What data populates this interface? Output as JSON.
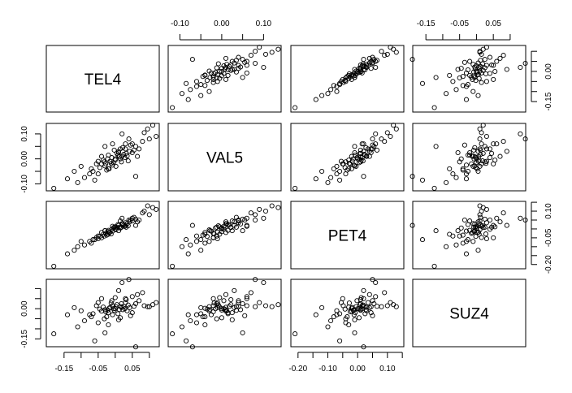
{
  "chart_data": {
    "type": "scatter",
    "kind": "scatterplot-matrix",
    "grid": false,
    "point_style": "open-circle",
    "colors": {
      "points": "#000000",
      "frame": "#000000",
      "background": "#ffffff"
    },
    "variables": [
      {
        "name": "TEL4",
        "lim": [
          -0.202,
          0.129
        ],
        "ticks": [
          -0.15,
          -0.1,
          -0.05,
          0.0,
          0.05,
          0.1
        ],
        "tick_labels_bottom": [
          "-0.15",
          "-0.05",
          "0.05"
        ],
        "tick_values_bottom": [
          -0.15,
          -0.05,
          0.05
        ],
        "tick_labels_right": [
          "0.00",
          "-0.15"
        ],
        "tick_values_right": [
          0.0,
          -0.15
        ]
      },
      {
        "name": "VAL5",
        "lim": [
          -0.128,
          0.142
        ],
        "ticks": [
          -0.1,
          -0.05,
          0.0,
          0.05,
          0.1
        ],
        "tick_labels_top": [
          "-0.10",
          "0.00",
          "0.10"
        ],
        "tick_values_top": [
          -0.1,
          0.0,
          0.1
        ],
        "tick_labels_left": [
          "-0.10",
          "0.00",
          "0.10"
        ],
        "tick_values_left": [
          -0.1,
          0.0,
          0.1
        ]
      },
      {
        "name": "PET4",
        "lim": [
          -0.224,
          0.155
        ],
        "ticks": [
          -0.2,
          -0.15,
          -0.1,
          -0.05,
          0.0,
          0.05,
          0.1,
          0.15
        ],
        "tick_labels_bottom": [
          "-0.20",
          "-0.10",
          "0.00",
          "0.10"
        ],
        "tick_values_bottom": [
          -0.2,
          -0.1,
          0.0,
          0.1
        ],
        "tick_labels_right": [
          "-0.20",
          "-0.05",
          "0.10"
        ],
        "tick_values_right": [
          -0.2,
          -0.05,
          0.1
        ]
      },
      {
        "name": "SUZ4",
        "lim": [
          -0.189,
          0.146
        ],
        "ticks": [
          -0.15,
          -0.1,
          -0.05,
          0.0,
          0.05,
          0.1
        ],
        "tick_labels_top": [
          "-0.15",
          "-0.05",
          "0.05"
        ],
        "tick_values_top": [
          -0.15,
          -0.05,
          0.05
        ],
        "tick_labels_left": [
          "-0.15",
          "0.00"
        ],
        "tick_values_left": [
          -0.15,
          0.0
        ]
      }
    ],
    "observations": [
      [
        -0.18,
        -0.118,
        -0.21,
        -0.125
      ],
      [
        0.11,
        0.135,
        0.12,
        0.02
      ],
      [
        0.095,
        0.12,
        0.13,
        0.01
      ],
      [
        0.085,
        0.105,
        0.1,
        0.015
      ],
      [
        -0.14,
        -0.08,
        -0.14,
        -0.03
      ],
      [
        -0.11,
        -0.095,
        -0.1,
        -0.09
      ],
      [
        -0.12,
        -0.05,
        -0.12,
        0.005
      ],
      [
        -0.09,
        -0.075,
        -0.09,
        -0.06
      ],
      [
        -0.06,
        -0.085,
        -0.06,
        -0.16
      ],
      [
        0.02,
        0.1,
        0.06,
        0.13
      ],
      [
        0.04,
        0.08,
        0.05,
        0.145
      ],
      [
        0.1,
        0.08,
        0.08,
        0.01
      ],
      [
        0.06,
        -0.07,
        0.02,
        -0.19
      ],
      [
        -0.03,
        0.05,
        -0.01,
        -0.12
      ],
      [
        0.01,
        0.03,
        0.02,
        0.09
      ],
      [
        -0.07,
        -0.04,
        -0.08,
        -0.04
      ],
      [
        -0.05,
        -0.06,
        -0.04,
        -0.07
      ],
      [
        0.05,
        0.06,
        0.06,
        0.06
      ],
      [
        0.07,
        0.04,
        0.05,
        0.04
      ],
      [
        0.08,
        0.07,
        0.09,
        0.08
      ],
      [
        -0.1,
        -0.03,
        -0.07,
        -0.01
      ],
      [
        0.03,
        0.06,
        0.02,
        0.05
      ],
      [
        -0.02,
        -0.04,
        -0.03,
        -0.08
      ],
      [
        0.12,
        0.09,
        0.11,
        0.03
      ],
      [
        -0.04,
        -0.02,
        -0.05,
        0.05
      ],
      [
        0.0,
        0.0,
        0.0,
        0.0
      ],
      [
        0.012,
        0.008,
        0.01,
        -0.004
      ],
      [
        -0.015,
        -0.01,
        -0.018,
        0.006
      ],
      [
        0.025,
        0.018,
        0.022,
        0.012
      ],
      [
        -0.028,
        -0.02,
        -0.025,
        -0.015
      ],
      [
        0.005,
        0.022,
        0.008,
        0.02
      ],
      [
        -0.008,
        -0.025,
        -0.012,
        -0.03
      ],
      [
        0.035,
        0.012,
        0.03,
        -0.01
      ],
      [
        -0.035,
        -0.005,
        -0.03,
        0.008
      ],
      [
        0.018,
        -0.012,
        0.01,
        0.025
      ],
      [
        -0.02,
        0.015,
        -0.008,
        -0.02
      ],
      [
        0.042,
        0.03,
        0.04,
        0.005
      ],
      [
        -0.045,
        -0.035,
        -0.042,
        -0.002
      ],
      [
        0.002,
        -0.03,
        -0.005,
        0.01
      ],
      [
        -0.003,
        0.035,
        0.01,
        -0.008
      ],
      [
        0.03,
        0.04,
        0.035,
        0.03
      ],
      [
        -0.025,
        -0.045,
        -0.035,
        -0.04
      ],
      [
        0.05,
        0.025,
        0.045,
        -0.02
      ],
      [
        -0.055,
        -0.02,
        -0.048,
        0.015
      ],
      [
        0.015,
        0.0,
        0.005,
        -0.045
      ],
      [
        -0.01,
        0.005,
        -0.002,
        0.04
      ],
      [
        0.022,
        0.045,
        0.028,
        -0.005
      ],
      [
        -0.018,
        -0.04,
        -0.02,
        0.002
      ],
      [
        0.038,
        -0.008,
        0.018,
        0.018
      ],
      [
        -0.04,
        0.01,
        -0.02,
        -0.012
      ],
      [
        0.008,
        0.015,
        0.025,
        -0.025
      ],
      [
        -0.012,
        -0.018,
        -0.028,
        0.028
      ],
      [
        0.028,
        0.005,
        0.015,
        0.0
      ],
      [
        -0.03,
        -0.028,
        -0.01,
        -0.005
      ],
      [
        0.06,
        0.05,
        0.055,
        0.025
      ],
      [
        -0.065,
        -0.05,
        -0.06,
        -0.025
      ],
      [
        0.045,
        0.055,
        0.05,
        -0.035
      ],
      [
        -0.05,
        -0.01,
        -0.055,
        0.03
      ],
      [
        0.0,
        -0.005,
        0.012,
        0.055
      ],
      [
        0.01,
        0.025,
        -0.01,
        -0.055
      ],
      [
        -0.005,
        -0.015,
        0.005,
        0.0
      ],
      [
        0.02,
        0.01,
        0.03,
        0.007
      ],
      [
        -0.022,
        0.0,
        -0.015,
        -0.007
      ],
      [
        0.032,
        0.022,
        0.01,
        0.045
      ],
      [
        -0.032,
        -0.012,
        -0.04,
        -0.05
      ],
      [
        0.055,
        0.035,
        0.065,
        0.012
      ],
      [
        0.015,
        0.04,
        0.045,
        0.01
      ],
      [
        -0.075,
        -0.06,
        -0.07,
        -0.03
      ],
      [
        0.065,
        0.01,
        0.04,
        0.07
      ],
      [
        -0.008,
        0.06,
        0.015,
        0.015
      ]
    ]
  }
}
